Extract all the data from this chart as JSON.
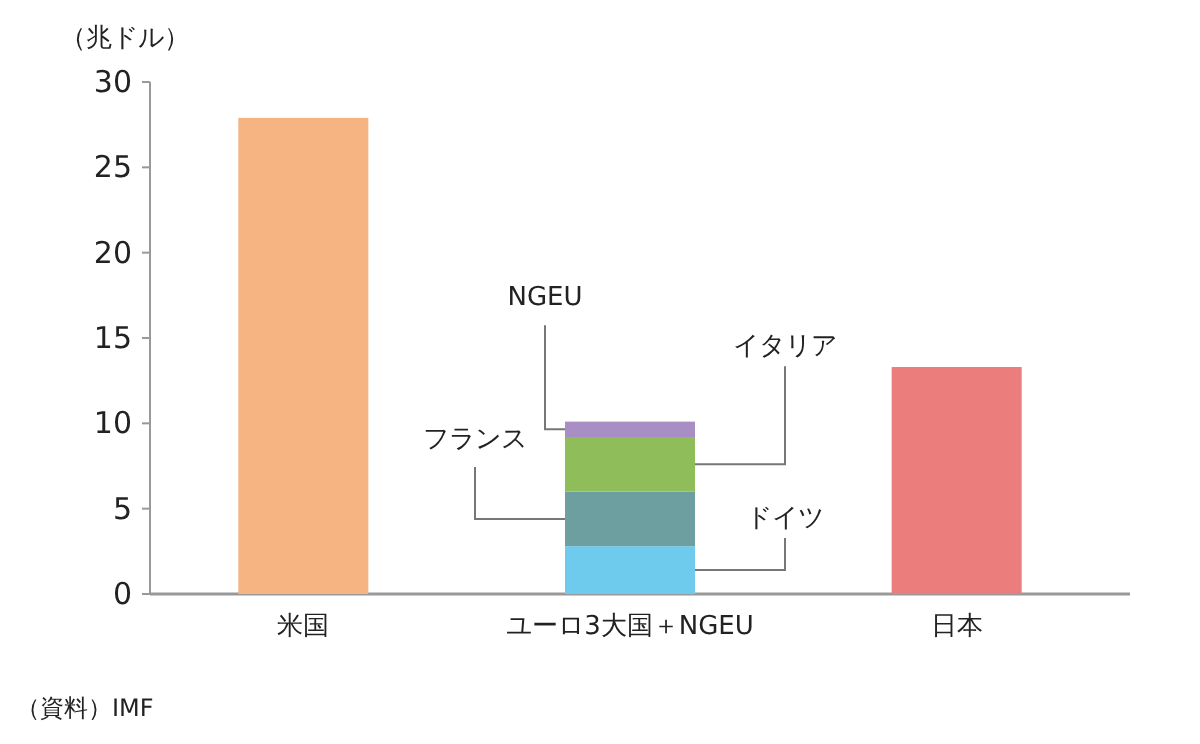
{
  "chart_data": {
    "type": "bar",
    "stacked": true,
    "ylabel": "（兆ドル）",
    "categories": [
      "米国",
      "ユーロ3大国＋NGEU",
      "日本"
    ],
    "ylim": [
      0,
      30
    ],
    "yticks": [
      0,
      5,
      10,
      15,
      20,
      25,
      30
    ],
    "series": [
      {
        "values": [
          27.9,
          null,
          13.3
        ],
        "colors": [
          "#f5b482",
          null,
          "#eb7d7d"
        ]
      },
      {
        "name": "ドイツ",
        "color": "#6ecbee",
        "values": [
          null,
          2.8,
          null
        ]
      },
      {
        "name": "フランス",
        "color": "#6e9fa0",
        "values": [
          null,
          3.2,
          null
        ]
      },
      {
        "name": "イタリア",
        "color": "#8fbd5a",
        "values": [
          null,
          3.2,
          null
        ]
      },
      {
        "name": "NGEU",
        "color": "#a98ec6",
        "values": [
          null,
          0.9,
          null
        ]
      }
    ],
    "annotations": [
      "（資料）IMF"
    ]
  }
}
